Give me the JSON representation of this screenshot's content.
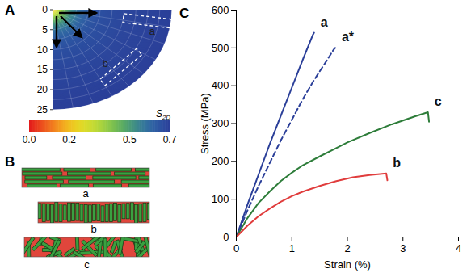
{
  "panel_labels": [
    "A",
    "B",
    "C"
  ],
  "panel_a": {
    "rlim": [
      0,
      25
    ],
    "rticks": [
      0,
      5,
      10,
      15,
      20,
      25
    ],
    "s2d_profile": {
      "r": [
        0,
        1,
        2,
        3,
        4,
        6,
        8,
        10,
        15,
        20,
        25
      ],
      "s": [
        0.18,
        0.3,
        0.4,
        0.47,
        0.53,
        0.6,
        0.64,
        0.66,
        0.68,
        0.69,
        0.7
      ]
    },
    "regions": [
      "a",
      "b"
    ],
    "colorbar": {
      "title": "S",
      "title_subscript": "2D",
      "range": [
        0,
        0.7
      ],
      "ticks": [
        {
          "value": 0,
          "label": "0.0"
        },
        0.2,
        0.5,
        0.7
      ],
      "colors": [
        "#e31a1c",
        "#f47a20",
        "#f4e11e",
        "#b8dc3c",
        "#4fae5a",
        "#2f6fb0",
        "#2b3f99"
      ]
    }
  },
  "panel_b": {
    "labels": [
      "a",
      "b",
      "c"
    ]
  },
  "chart_data": {
    "type": "line",
    "xlabel": "Strain (%)",
    "ylabel": "Stress (MPa)",
    "xlim": [
      0,
      4
    ],
    "ylim": [
      0,
      600
    ],
    "xticks": [
      0,
      1,
      2,
      3,
      4
    ],
    "yticks": [
      0,
      100,
      200,
      300,
      400,
      500,
      600
    ],
    "grid": false,
    "series": [
      {
        "name": "a",
        "color": "#2b3f99",
        "line_style": "solid",
        "x": [
          0,
          0.2,
          0.4,
          0.6,
          0.8,
          1.0,
          1.2,
          1.38,
          1.4
        ],
        "values": [
          0,
          85,
          165,
          245,
          320,
          395,
          470,
          535,
          540
        ]
      },
      {
        "name": "a*",
        "color": "#2b3f99",
        "line_style": "dashed",
        "x": [
          0,
          0.2,
          0.4,
          0.6,
          0.8,
          1.0,
          1.2,
          1.4,
          1.6,
          1.75,
          1.78
        ],
        "values": [
          0,
          70,
          135,
          195,
          255,
          310,
          365,
          415,
          460,
          495,
          500
        ]
      },
      {
        "name": "c",
        "color": "#2e7d3a",
        "line_style": "solid",
        "x": [
          0,
          0.2,
          0.4,
          0.6,
          0.8,
          1.0,
          1.2,
          1.5,
          1.8,
          2.0,
          2.4,
          2.8,
          3.2,
          3.45,
          3.47
        ],
        "values": [
          0,
          50,
          90,
          120,
          148,
          170,
          190,
          213,
          235,
          250,
          275,
          298,
          318,
          330,
          305
        ]
      },
      {
        "name": "b",
        "color": "#e03c3c",
        "line_style": "solid",
        "x": [
          0,
          0.2,
          0.4,
          0.6,
          0.8,
          1.0,
          1.2,
          1.5,
          1.8,
          2.1,
          2.4,
          2.7,
          2.72
        ],
        "values": [
          0,
          30,
          55,
          75,
          93,
          108,
          120,
          135,
          148,
          158,
          164,
          168,
          150
        ]
      }
    ]
  }
}
